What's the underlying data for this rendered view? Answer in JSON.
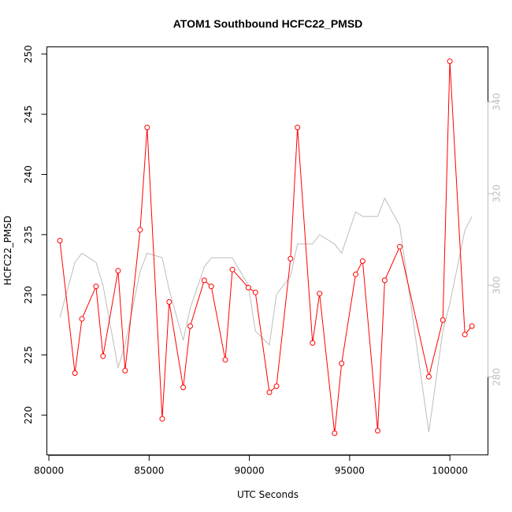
{
  "chart_data": {
    "type": "line",
    "title": "ATOM1 Southbound HCFC22_PMSD",
    "xlabel": "UTC Seconds",
    "ylabel": "HCFC22_PMSD",
    "xlim": [
      79900,
      101900
    ],
    "ylim": [
      216.7,
      250.6
    ],
    "y2lim": [
      263,
      352
    ],
    "x_ticks": [
      80000,
      85000,
      90000,
      95000,
      100000
    ],
    "x_tick_labels": [
      "80000",
      "85000",
      "90000",
      "95000",
      "100000"
    ],
    "y_ticks": [
      220,
      225,
      230,
      235,
      240,
      245,
      250
    ],
    "y_tick_labels": [
      "220",
      "225",
      "230",
      "235",
      "240",
      "245",
      "250"
    ],
    "y2_ticks": [
      280,
      300,
      320,
      340
    ],
    "y2_tick_labels": [
      "280",
      "300",
      "320",
      "340"
    ],
    "grid": false,
    "colors": {
      "primary": "#ff0000",
      "secondary": "#bdbdbd",
      "axis": "#000000"
    },
    "series": [
      {
        "axis": "left",
        "color": "#ff0000",
        "markers": "open-circle",
        "x": [
          80550,
          81300,
          81650,
          82350,
          82700,
          83450,
          83800,
          84550,
          84900,
          85650,
          86000,
          86700,
          87050,
          87750,
          88100,
          88800,
          89150,
          89950,
          90300,
          91000,
          91350,
          92050,
          92400,
          93150,
          93500,
          94250,
          94600,
          95300,
          95650,
          96400,
          96750,
          97500,
          98950,
          99650,
          100000,
          100750,
          101100
        ],
        "values": [
          234.5,
          223.5,
          228.0,
          230.7,
          224.9,
          232.0,
          223.7,
          235.4,
          243.9,
          219.7,
          229.4,
          222.3,
          227.4,
          231.2,
          230.7,
          224.6,
          232.1,
          230.6,
          230.2,
          221.9,
          222.4,
          233.0,
          243.9,
          226.0,
          230.1,
          218.5,
          224.3,
          231.7,
          232.8,
          218.7,
          231.2,
          234.0,
          223.2,
          227.9,
          249.4,
          226.7,
          227.4
        ]
      },
      {
        "axis": "right",
        "color": "#bdbdbd",
        "markers": "none",
        "x": [
          80550,
          81300,
          81650,
          82350,
          82700,
          83450,
          83800,
          84550,
          84900,
          85650,
          86000,
          86700,
          87050,
          87750,
          88100,
          88800,
          89150,
          89950,
          90300,
          91000,
          91350,
          92050,
          92400,
          93150,
          93500,
          94250,
          94600,
          95300,
          95650,
          96400,
          96750,
          97500,
          98950,
          99650,
          100000,
          100750,
          101100
        ],
        "values": [
          293,
          305,
          307,
          305,
          300,
          282,
          287,
          303,
          307,
          306,
          299,
          288,
          295,
          304,
          306,
          306,
          306,
          300,
          290,
          287,
          298,
          302,
          309,
          309,
          311,
          309,
          307,
          316,
          315,
          315,
          319,
          313,
          268,
          290,
          296,
          312,
          315
        ]
      }
    ]
  }
}
